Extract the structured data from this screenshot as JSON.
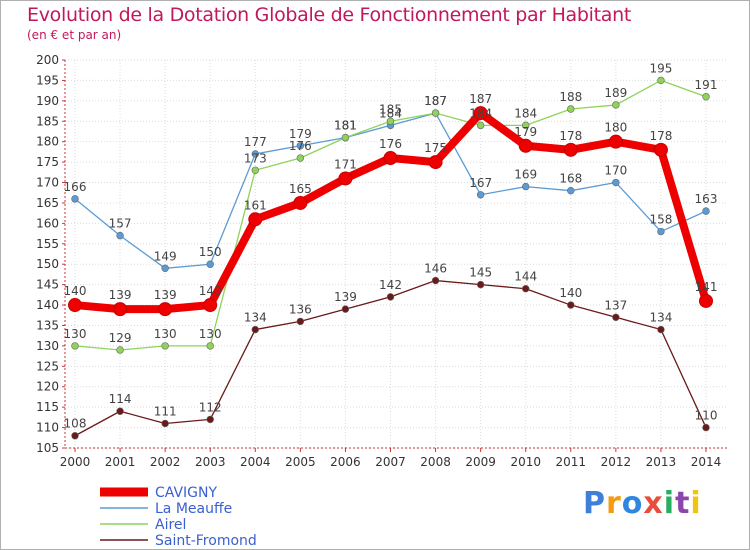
{
  "title": "Evolution de la Dotation Globale de Fonctionnement par Habitant",
  "subtitle": "(en € et par an)",
  "logo_text": "Proxiti",
  "logo_colors": [
    "#3f7fd8",
    "#f39c12",
    "#2e86de",
    "#e74c3c",
    "#27ae60",
    "#8e44ad",
    "#f1c40f"
  ],
  "chart_data": {
    "type": "line",
    "title": "Evolution de la Dotation Globale de Fonctionnement par Habitant",
    "subtitle": "(en € et par an)",
    "xlabel": "",
    "ylabel": "",
    "ylim": [
      105,
      200
    ],
    "yticks": [
      105,
      110,
      115,
      120,
      125,
      130,
      135,
      140,
      145,
      150,
      155,
      160,
      165,
      170,
      175,
      180,
      185,
      190,
      195,
      200
    ],
    "x": [
      "2000",
      "2001",
      "2002",
      "2003",
      "2004",
      "2005",
      "2006",
      "2007",
      "2008",
      "2009",
      "2010",
      "2011",
      "2012",
      "2013",
      "2014"
    ],
    "grid": true,
    "legend": "bottom-left",
    "series": [
      {
        "name": "CAVIGNY",
        "color": "#ee0000",
        "values": [
          140,
          139,
          139,
          140,
          161,
          165,
          171,
          176,
          175,
          187,
          179,
          178,
          180,
          178,
          141
        ]
      },
      {
        "name": "La Meauffe",
        "color": "#5b9bd5",
        "values": [
          166,
          157,
          149,
          150,
          177,
          179,
          181,
          184,
          187,
          167,
          169,
          168,
          170,
          158,
          163
        ]
      },
      {
        "name": "Airel",
        "color": "#8fd35a",
        "values": [
          130,
          129,
          130,
          130,
          173,
          176,
          181,
          185,
          187,
          184,
          184,
          188,
          189,
          195,
          191
        ]
      },
      {
        "name": "Saint-Fromond",
        "color": "#6b1a1a",
        "values": [
          108,
          114,
          111,
          112,
          134,
          136,
          139,
          142,
          146,
          145,
          144,
          140,
          137,
          134,
          110
        ]
      }
    ]
  }
}
